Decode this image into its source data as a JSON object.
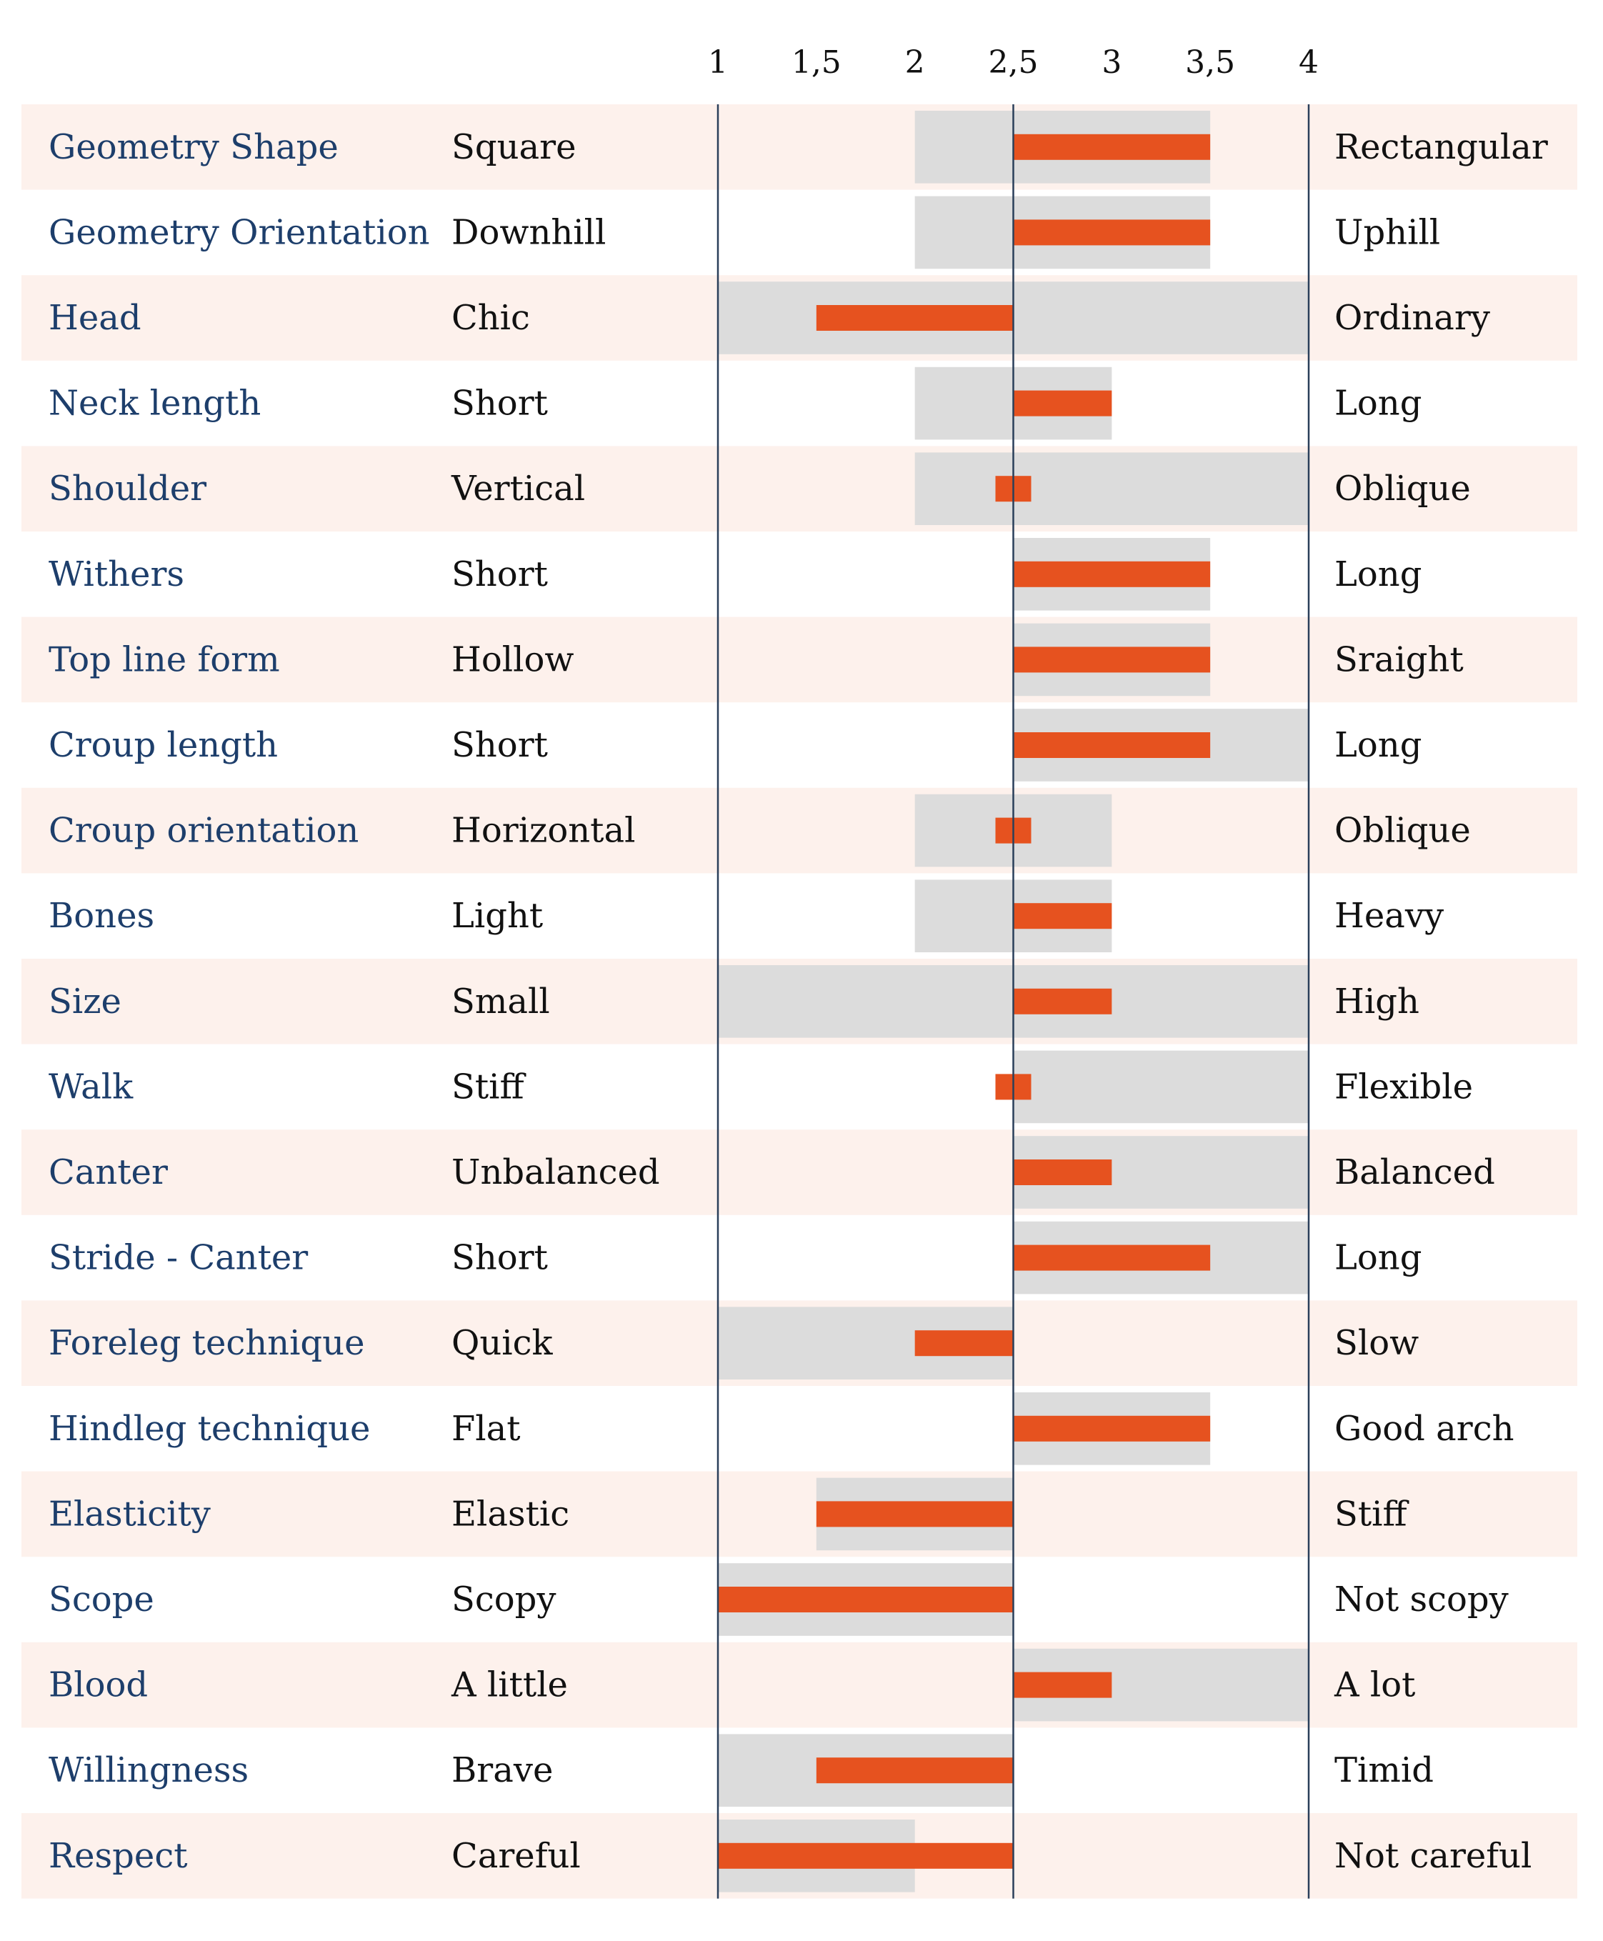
{
  "colors": {
    "row_band": "#fdf1ec",
    "range_bar": "#dcdcdc",
    "value_bar": "#e6521f",
    "trait_text": "#1d3e6b",
    "axis_line": "#2a3f5a"
  },
  "chart_data": {
    "type": "bar",
    "orientation": "horizontal",
    "baseline": 2.5,
    "xlim": [
      1,
      4
    ],
    "ticks": [
      "1",
      "1,5",
      "2",
      "2,5",
      "3",
      "3,5",
      "4"
    ],
    "tick_values": [
      1,
      1.5,
      2,
      2.5,
      3,
      3.5,
      4
    ],
    "rows": [
      {
        "trait": "Geometry Shape",
        "low": "Square",
        "high": "Rectangular",
        "range": [
          2,
          3.5
        ],
        "value": 3.5
      },
      {
        "trait": "Geometry Orientation",
        "low": "Downhill",
        "high": "Uphill",
        "range": [
          2,
          3.5
        ],
        "value": 3.5
      },
      {
        "trait": "Head",
        "low": "Chic",
        "high": "Ordinary",
        "range": [
          1,
          4
        ],
        "value": 1.5
      },
      {
        "trait": "Neck length",
        "low": "Short",
        "high": "Long",
        "range": [
          2,
          3
        ],
        "value": 3
      },
      {
        "trait": "Shoulder",
        "low": "Vertical",
        "high": "Oblique",
        "range": [
          2,
          4
        ],
        "value": 2.5
      },
      {
        "trait": "Withers",
        "low": "Short",
        "high": "Long",
        "range": [
          2.5,
          3.5
        ],
        "value": 3.5
      },
      {
        "trait": "Top line form",
        "low": "Hollow",
        "high": "Sraight",
        "range": [
          2.5,
          3.5
        ],
        "value": 3.5
      },
      {
        "trait": "Croup length",
        "low": "Short",
        "high": "Long",
        "range": [
          2.5,
          4
        ],
        "value": 3.5
      },
      {
        "trait": "Croup orientation",
        "low": "Horizontal",
        "high": "Oblique",
        "range": [
          2,
          3
        ],
        "value": 2.5
      },
      {
        "trait": "Bones",
        "low": "Light",
        "high": "Heavy",
        "range": [
          2,
          3
        ],
        "value": 3
      },
      {
        "trait": "Size",
        "low": "Small",
        "high": "High",
        "range": [
          1,
          4
        ],
        "value": 3
      },
      {
        "trait": "Walk",
        "low": "Stiff",
        "high": "Flexible",
        "range": [
          2.5,
          4
        ],
        "value": 2.5
      },
      {
        "trait": "Canter",
        "low": "Unbalanced",
        "high": "Balanced",
        "range": [
          2.5,
          4
        ],
        "value": 3
      },
      {
        "trait": "Stride - Canter",
        "low": "Short",
        "high": "Long",
        "range": [
          2.5,
          4
        ],
        "value": 3.5
      },
      {
        "trait": "Foreleg technique",
        "low": "Quick",
        "high": "Slow",
        "range": [
          1,
          2.5
        ],
        "value": 2
      },
      {
        "trait": "Hindleg technique",
        "low": "Flat",
        "high": "Good arch",
        "range": [
          2.5,
          3.5
        ],
        "value": 3.5
      },
      {
        "trait": "Elasticity",
        "low": "Elastic",
        "high": "Stiff",
        "range": [
          1.5,
          2.5
        ],
        "value": 1.5
      },
      {
        "trait": "Scope",
        "low": "Scopy",
        "high": "Not scopy",
        "range": [
          1,
          2.5
        ],
        "value": 1
      },
      {
        "trait": "Blood",
        "low": "A little",
        "high": "A lot",
        "range": [
          2.5,
          4
        ],
        "value": 3
      },
      {
        "trait": "Willingness",
        "low": "Brave",
        "high": "Timid",
        "range": [
          1,
          2.5
        ],
        "value": 1.5
      },
      {
        "trait": "Respect",
        "low": "Careful",
        "high": "Not careful",
        "range": [
          1,
          2
        ],
        "value": 1
      }
    ]
  }
}
